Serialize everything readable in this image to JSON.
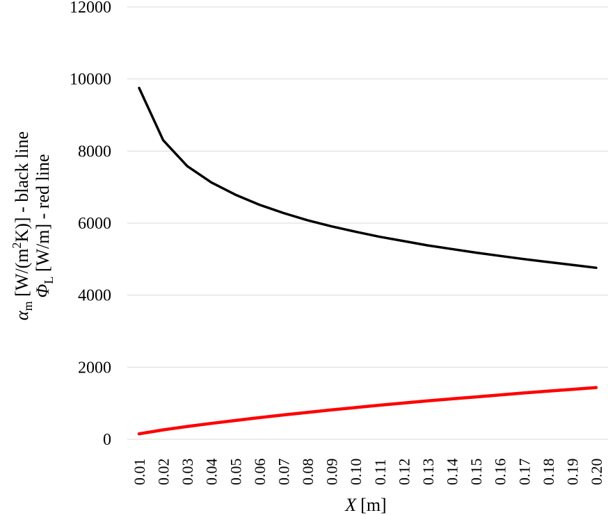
{
  "chart_data": {
    "type": "line",
    "xlabel_var": "X",
    "xlabel_unit": "[m]",
    "ylabel_line1": {
      "sym": "α",
      "sub": "m",
      "rest_a": " [W/(m",
      "sup": "2",
      "rest_b": "K)] - black line"
    },
    "ylabel_line2": {
      "sym": "Φ",
      "sub": "L",
      "rest": " [W/m] - red line"
    },
    "ylim": [
      0,
      12000
    ],
    "yticks": [
      0,
      2000,
      4000,
      6000,
      8000,
      10000,
      12000
    ],
    "ytick_labels": [
      "0",
      "2000",
      "4000",
      "6000",
      "8000",
      "10000",
      "12000"
    ],
    "grid": true,
    "categories": [
      "0.01",
      "0.02",
      "0.03",
      "0.04",
      "0.05",
      "0.06",
      "0.07",
      "0.08",
      "0.09",
      "0.10",
      "0.11",
      "0.12",
      "0.13",
      "0.14",
      "0.15",
      "0.16",
      "0.17",
      "0.18",
      "0.19",
      "0.20"
    ],
    "x": [
      0.01,
      0.02,
      0.03,
      0.04,
      0.05,
      0.06,
      0.07,
      0.08,
      0.09,
      0.1,
      0.11,
      0.12,
      0.13,
      0.14,
      0.15,
      0.16,
      0.17,
      0.18,
      0.19,
      0.2
    ],
    "series": [
      {
        "color": "#000000",
        "values": [
          9750,
          8300,
          7580,
          7130,
          6790,
          6510,
          6280,
          6080,
          5910,
          5760,
          5620,
          5500,
          5380,
          5280,
          5180,
          5090,
          5000,
          4920,
          4840,
          4760
        ]
      },
      {
        "color": "#ff0000",
        "values": [
          150,
          260,
          355,
          440,
          520,
          600,
          675,
          745,
          815,
          880,
          945,
          1005,
          1065,
          1120,
          1175,
          1230,
          1285,
          1335,
          1385,
          1435
        ]
      }
    ]
  }
}
